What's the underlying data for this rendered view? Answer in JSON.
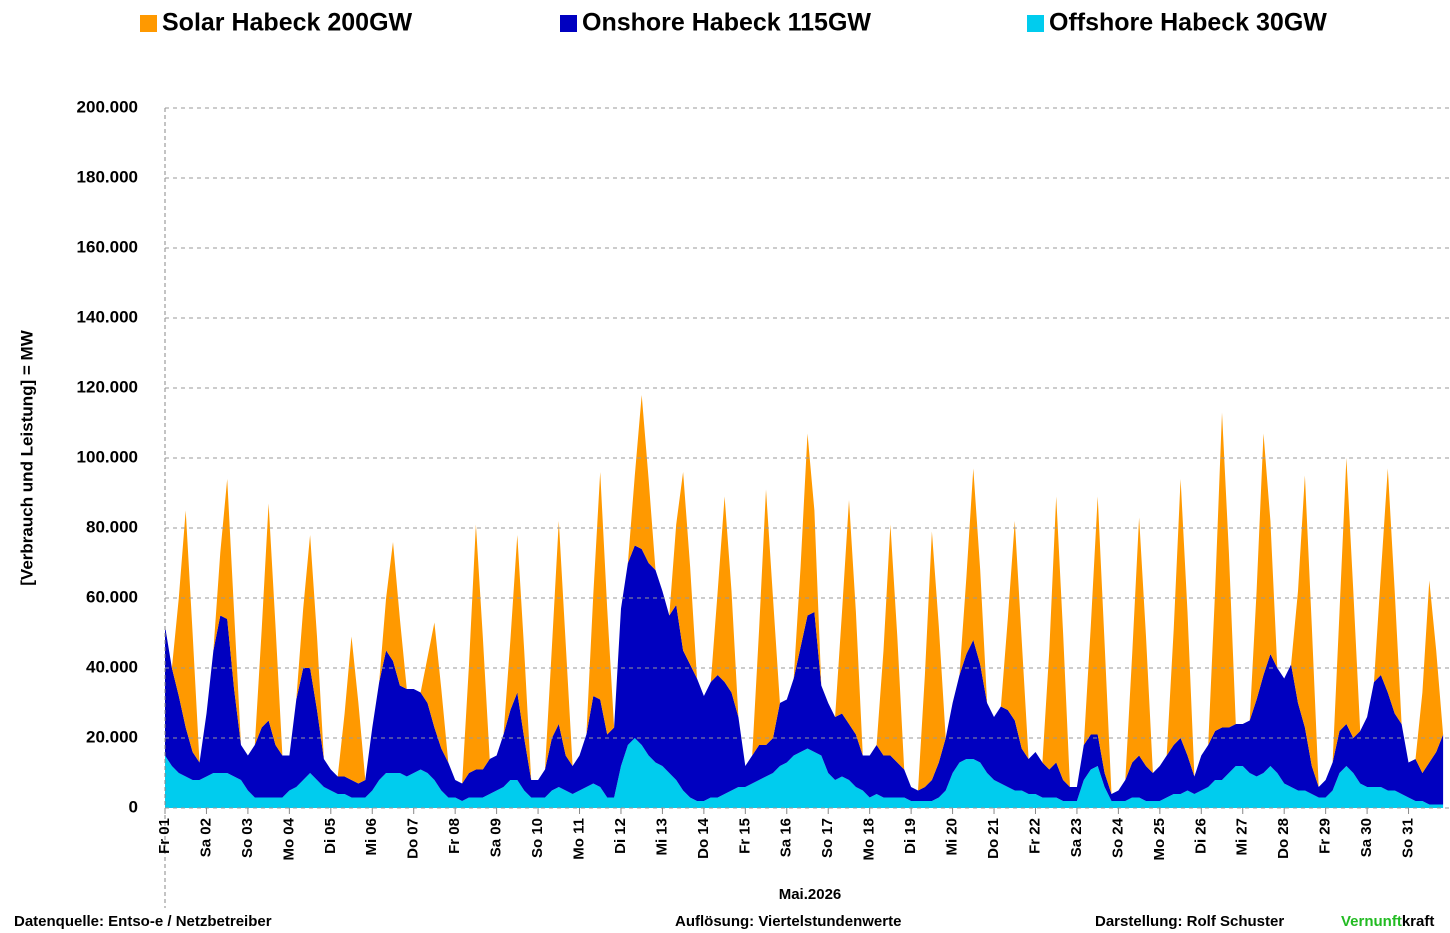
{
  "chart_data": {
    "type": "stacked_area",
    "y_label": "[Verbrauch und Leistung] = MW",
    "x_label": "Mai.2026",
    "ylim": [
      0,
      200000
    ],
    "yticks": [
      0,
      {
        "value": 20000,
        "label": "20.000"
      },
      {
        "value": 40000,
        "label": "40.000"
      },
      {
        "value": 60000,
        "label": "60.000"
      },
      {
        "value": 80000,
        "label": "80.000"
      },
      {
        "value": 100000,
        "label": "100.000"
      },
      {
        "value": 120000,
        "label": "120.000"
      },
      {
        "value": 140000,
        "label": "140.000"
      },
      {
        "value": 160000,
        "label": "160.000"
      },
      {
        "value": 180000,
        "label": "180.000"
      },
      {
        "value": 200000,
        "label": "200.000"
      }
    ],
    "grid": true,
    "xlim": [
      0,
      744
    ],
    "xticks": [
      {
        "value": 0,
        "label": "Fr 01"
      },
      {
        "value": 24,
        "label": "Sa 02"
      },
      {
        "value": 48,
        "label": "So 03"
      },
      {
        "value": 72,
        "label": "Mo 04"
      },
      {
        "value": 96,
        "label": "Di 05"
      },
      {
        "value": 120,
        "label": "Mi 06"
      },
      {
        "value": 144,
        "label": "Do 07"
      },
      {
        "value": 168,
        "label": "Fr 08"
      },
      {
        "value": 192,
        "label": "Sa 09"
      },
      {
        "value": 216,
        "label": "So 10"
      },
      {
        "value": 240,
        "label": "Mo 11"
      },
      {
        "value": 264,
        "label": "Di 12"
      },
      {
        "value": 288,
        "label": "Mi 13"
      },
      {
        "value": 312,
        "label": "Do 14"
      },
      {
        "value": 336,
        "label": "Fr 15"
      },
      {
        "value": 360,
        "label": "Sa 16"
      },
      {
        "value": 384,
        "label": "So 17"
      },
      {
        "value": 408,
        "label": "Mo 18"
      },
      {
        "value": 432,
        "label": "Di 19"
      },
      {
        "value": 456,
        "label": "Mi 20"
      },
      {
        "value": 480,
        "label": "Do 21"
      },
      {
        "value": 504,
        "label": "Fr 22"
      },
      {
        "value": 528,
        "label": "Sa 23"
      },
      {
        "value": 552,
        "label": "So 24"
      },
      {
        "value": 576,
        "label": "Mo 25"
      },
      {
        "value": 600,
        "label": "Di 26"
      },
      {
        "value": 624,
        "label": "Mi 27"
      },
      {
        "value": 648,
        "label": "Do 28"
      },
      {
        "value": 672,
        "label": "Fr 29"
      },
      {
        "value": 696,
        "label": "Sa 30"
      },
      {
        "value": 720,
        "label": "So 31"
      }
    ],
    "x": [
      0,
      4,
      8,
      12,
      16,
      20,
      24,
      28,
      32,
      36,
      40,
      44,
      48,
      52,
      56,
      60,
      64,
      68,
      72,
      76,
      80,
      84,
      88,
      92,
      96,
      100,
      104,
      108,
      112,
      116,
      120,
      124,
      128,
      132,
      136,
      140,
      144,
      148,
      152,
      156,
      160,
      164,
      168,
      172,
      176,
      180,
      184,
      188,
      192,
      196,
      200,
      204,
      208,
      212,
      216,
      220,
      224,
      228,
      232,
      236,
      240,
      244,
      248,
      252,
      256,
      260,
      264,
      268,
      272,
      276,
      280,
      284,
      288,
      292,
      296,
      300,
      304,
      308,
      312,
      316,
      320,
      324,
      328,
      332,
      336,
      340,
      344,
      348,
      352,
      356,
      360,
      364,
      368,
      372,
      376,
      380,
      384,
      388,
      392,
      396,
      400,
      404,
      408,
      412,
      416,
      420,
      424,
      428,
      432,
      436,
      440,
      444,
      448,
      452,
      456,
      460,
      464,
      468,
      472,
      476,
      480,
      484,
      488,
      492,
      496,
      500,
      504,
      508,
      512,
      516,
      520,
      524,
      528,
      532,
      536,
      540,
      544,
      548,
      552,
      556,
      560,
      564,
      568,
      572,
      576,
      580,
      584,
      588,
      592,
      596,
      600,
      604,
      608,
      612,
      616,
      620,
      624,
      628,
      632,
      636,
      640,
      644,
      648,
      652,
      656,
      660,
      664,
      668,
      672,
      676,
      680,
      684,
      688,
      692,
      696,
      700,
      704,
      708,
      712,
      716,
      720,
      724,
      728,
      732,
      736,
      740
    ],
    "series": [
      {
        "name": "Solar Habeck 200GW",
        "color": "#ff9900",
        "values": [
          0,
          0,
          28000,
          62000,
          34000,
          0,
          0,
          0,
          18000,
          40000,
          22000,
          0,
          0,
          0,
          28000,
          62000,
          34000,
          0,
          0,
          0,
          17000,
          38000,
          21000,
          0,
          0,
          0,
          18000,
          41000,
          23000,
          0,
          0,
          0,
          15000,
          34000,
          19000,
          0,
          0,
          0,
          13000,
          30000,
          17000,
          0,
          0,
          0,
          31000,
          70000,
          38000,
          0,
          0,
          0,
          20000,
          45000,
          25000,
          0,
          0,
          0,
          26000,
          58000,
          32000,
          0,
          0,
          0,
          29000,
          65000,
          36000,
          0,
          0,
          0,
          20000,
          44000,
          24000,
          0,
          0,
          0,
          23000,
          51000,
          28000,
          0,
          0,
          0,
          24000,
          53000,
          29000,
          0,
          0,
          0,
          33000,
          73000,
          40000,
          0,
          0,
          0,
          23000,
          52000,
          29000,
          0,
          0,
          0,
          29000,
          64000,
          35000,
          0,
          0,
          0,
          30000,
          66000,
          36000,
          0,
          0,
          0,
          32000,
          71000,
          39000,
          0,
          0,
          0,
          22000,
          49000,
          27000,
          0,
          0,
          0,
          26000,
          57000,
          31000,
          0,
          0,
          0,
          34000,
          76000,
          42000,
          0,
          0,
          0,
          31000,
          68000,
          37000,
          0,
          0,
          0,
          31000,
          68000,
          37000,
          0,
          0,
          0,
          33000,
          74000,
          41000,
          0,
          0,
          0,
          40000,
          90000,
          50000,
          0,
          0,
          0,
          31000,
          69000,
          38000,
          0,
          0,
          0,
          32000,
          72000,
          40000,
          0,
          0,
          0,
          34000,
          76000,
          42000,
          0,
          0,
          0,
          29000,
          64000,
          35000,
          0,
          0,
          0,
          23000,
          52000,
          29000,
          0
        ]
      },
      {
        "name": "Onshore Habeck 115GW",
        "color": "#0000c0",
        "values": [
          37000,
          28000,
          22000,
          14000,
          8000,
          5000,
          18000,
          35000,
          45000,
          44000,
          25000,
          10000,
          10000,
          15000,
          20000,
          22000,
          15000,
          12000,
          10000,
          25000,
          32000,
          30000,
          20000,
          8000,
          6000,
          5000,
          5000,
          5000,
          4000,
          5000,
          18000,
          28000,
          35000,
          32000,
          25000,
          25000,
          24000,
          22000,
          20000,
          15000,
          12000,
          10000,
          5000,
          5000,
          7000,
          8000,
          8000,
          10000,
          10000,
          15000,
          20000,
          25000,
          15000,
          5000,
          5000,
          8000,
          15000,
          18000,
          10000,
          8000,
          10000,
          15000,
          25000,
          25000,
          18000,
          20000,
          45000,
          52000,
          55000,
          56000,
          55000,
          55000,
          50000,
          45000,
          50000,
          40000,
          38000,
          35000,
          30000,
          33000,
          35000,
          32000,
          28000,
          20000,
          6000,
          8000,
          10000,
          9000,
          10000,
          18000,
          18000,
          22000,
          30000,
          38000,
          40000,
          20000,
          20000,
          18000,
          18000,
          16000,
          15000,
          10000,
          12000,
          14000,
          12000,
          12000,
          10000,
          8000,
          4000,
          3000,
          4000,
          6000,
          10000,
          15000,
          20000,
          25000,
          30000,
          34000,
          28000,
          20000,
          18000,
          22000,
          22000,
          20000,
          12000,
          10000,
          12000,
          10000,
          8000,
          10000,
          6000,
          4000,
          4000,
          10000,
          10000,
          9000,
          4000,
          2000,
          3000,
          6000,
          10000,
          12000,
          10000,
          8000,
          10000,
          12000,
          14000,
          16000,
          10000,
          5000,
          10000,
          12000,
          14000,
          15000,
          13000,
          12000,
          12000,
          15000,
          22000,
          28000,
          32000,
          30000,
          30000,
          35000,
          25000,
          18000,
          8000,
          3000,
          5000,
          8000,
          12000,
          12000,
          10000,
          15000,
          20000,
          30000,
          32000,
          28000,
          22000,
          20000,
          10000,
          12000,
          8000,
          12000,
          15000,
          20000
        ]
      },
      {
        "name": "Offshore Habeck 30GW",
        "color": "#00ccee",
        "values": [
          15000,
          12000,
          10000,
          9000,
          8000,
          8000,
          9000,
          10000,
          10000,
          10000,
          9000,
          8000,
          5000,
          3000,
          3000,
          3000,
          3000,
          3000,
          5000,
          6000,
          8000,
          10000,
          8000,
          6000,
          5000,
          4000,
          4000,
          3000,
          3000,
          3000,
          5000,
          8000,
          10000,
          10000,
          10000,
          9000,
          10000,
          11000,
          10000,
          8000,
          5000,
          3000,
          3000,
          2000,
          3000,
          3000,
          3000,
          4000,
          5000,
          6000,
          8000,
          8000,
          5000,
          3000,
          3000,
          3000,
          5000,
          6000,
          5000,
          4000,
          5000,
          6000,
          7000,
          6000,
          3000,
          3000,
          12000,
          18000,
          20000,
          18000,
          15000,
          13000,
          12000,
          10000,
          8000,
          5000,
          3000,
          2000,
          2000,
          3000,
          3000,
          4000,
          5000,
          6000,
          6000,
          7000,
          8000,
          9000,
          10000,
          12000,
          13000,
          15000,
          16000,
          17000,
          16000,
          15000,
          10000,
          8000,
          9000,
          8000,
          6000,
          5000,
          3000,
          4000,
          3000,
          3000,
          3000,
          3000,
          2000,
          2000,
          2000,
          2000,
          3000,
          5000,
          10000,
          13000,
          14000,
          14000,
          13000,
          10000,
          8000,
          7000,
          6000,
          5000,
          5000,
          4000,
          4000,
          3000,
          3000,
          3000,
          2000,
          2000,
          2000,
          8000,
          11000,
          12000,
          6000,
          2000,
          2000,
          2000,
          3000,
          3000,
          2000,
          2000,
          2000,
          3000,
          4000,
          4000,
          5000,
          4000,
          5000,
          6000,
          8000,
          8000,
          10000,
          12000,
          12000,
          10000,
          9000,
          10000,
          12000,
          10000,
          7000,
          6000,
          5000,
          5000,
          4000,
          3000,
          3000,
          5000,
          10000,
          12000,
          10000,
          7000,
          6000,
          6000,
          6000,
          5000,
          5000,
          4000,
          3000,
          2000,
          2000,
          1000,
          1000,
          1000
        ]
      }
    ]
  },
  "footer": {
    "source": "Datenquelle: Entso-e  / Netzbetreiber",
    "resolution": "Auflösung: Viertelstundenwerte",
    "author": "Darstellung:  Rolf Schuster",
    "brand_green": "Vernunft",
    "brand_black": "kraft"
  }
}
